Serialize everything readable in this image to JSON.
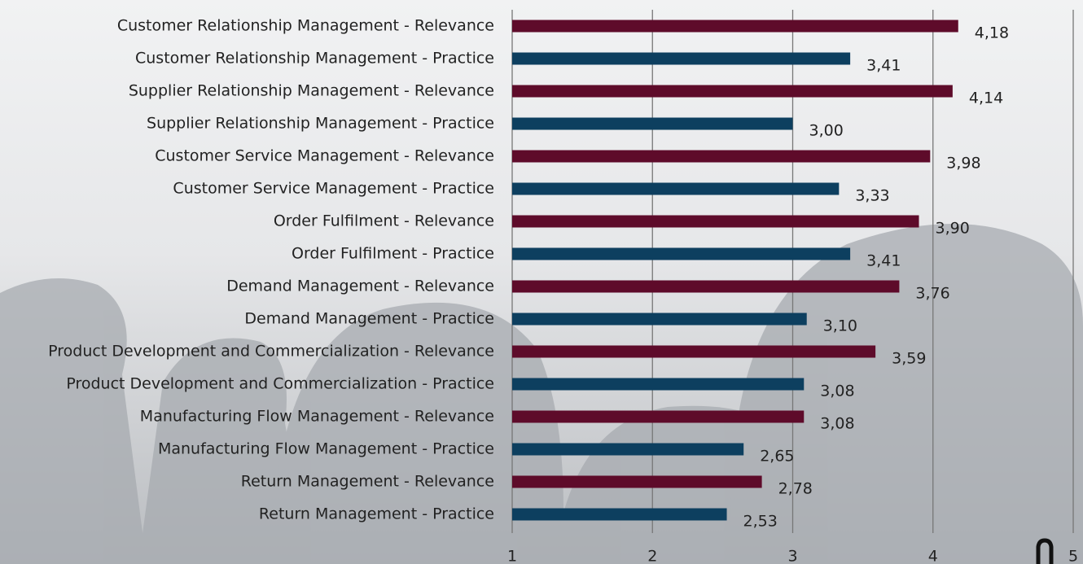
{
  "chart_data": {
    "type": "bar",
    "orientation": "horizontal",
    "categories": [
      "Customer Relationship Management - Relevance",
      "Customer Relationship Management - Practice",
      "Supplier Relationship Management - Relevance",
      "Supplier Relationship Management - Practice",
      "Customer Service Management - Relevance",
      "Customer Service Management - Practice",
      "Order Fulfilment - Relevance",
      "Order Fulfilment - Practice",
      "Demand Management - Relevance",
      "Demand Management - Practice",
      "Product Development and Commercialization - Relevance",
      "Product Development and Commercialization - Practice",
      "Manufacturing Flow Management - Relevance",
      "Manufacturing Flow Management - Practice",
      "Return Management - Relevance",
      "Return Management - Practice"
    ],
    "values": [
      4.18,
      3.41,
      4.14,
      3.0,
      3.98,
      3.33,
      3.9,
      3.41,
      3.76,
      3.1,
      3.59,
      3.08,
      3.08,
      2.65,
      2.78,
      2.53
    ],
    "value_labels": [
      "4,18",
      "3,41",
      "4,14",
      "3,00",
      "3,98",
      "3,33",
      "3,90",
      "3,41",
      "3,76",
      "3,10",
      "3,59",
      "3,08",
      "3,08",
      "2,65",
      "2,78",
      "2,53"
    ],
    "colors": [
      "#5e0b2a",
      "#0d3f5f",
      "#5e0b2a",
      "#0d3f5f",
      "#5e0b2a",
      "#0d3f5f",
      "#5e0b2a",
      "#0d3f5f",
      "#5e0b2a",
      "#0d3f5f",
      "#5e0b2a",
      "#0d3f5f",
      "#5e0b2a",
      "#0d3f5f",
      "#5e0b2a",
      "#0d3f5f"
    ],
    "xlim": [
      1,
      5
    ],
    "xticks": [
      1,
      2,
      3,
      4,
      5
    ],
    "grid": true
  }
}
